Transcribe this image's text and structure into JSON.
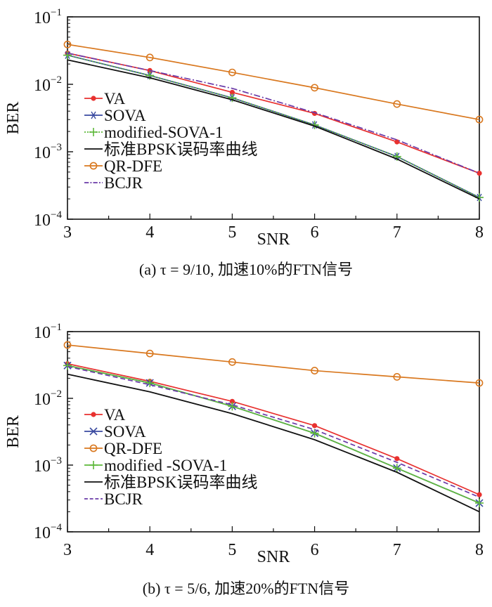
{
  "chart_data": [
    {
      "type": "line",
      "caption": "(a) τ = 9/10, 加速10%的FTN信号",
      "xlabel": "SNR",
      "ylabel": "BER",
      "yscale": "log",
      "xlim": [
        3,
        8
      ],
      "ylim": [
        0.0001,
        0.1
      ],
      "x": [
        3,
        4,
        5,
        6,
        7,
        8
      ],
      "xticks": [
        "3",
        "4",
        "5",
        "6",
        "7",
        "8"
      ],
      "yticks": [
        {
          "base": "10",
          "exp": "−1"
        },
        {
          "base": "10",
          "exp": "−2"
        },
        {
          "base": "10",
          "exp": "−3"
        },
        {
          "base": "10",
          "exp": "−4"
        }
      ],
      "legend_position": "center-left",
      "series": [
        {
          "name": "VA",
          "color": "#e8312f",
          "marker": "dot",
          "dash": "",
          "values": [
            0.029,
            0.016,
            0.0076,
            0.0037,
            0.0014,
            0.00048
          ]
        },
        {
          "name": "SOVA",
          "color": "#3a4aa0",
          "marker": "asterisk",
          "dash": "",
          "values": [
            0.027,
            0.0135,
            0.0063,
            0.0025,
            0.00085,
            0.00021
          ]
        },
        {
          "name": "modified-SOVA-1",
          "color": "#5db83a",
          "marker": "plus",
          "dash": "2,2",
          "values": [
            0.027,
            0.0135,
            0.0063,
            0.0025,
            0.00085,
            0.00021
          ]
        },
        {
          "name": "标准BPSK误码率曲线",
          "color": "#111111",
          "marker": "none",
          "dash": "",
          "values": [
            0.023,
            0.0125,
            0.0059,
            0.0024,
            0.00078,
            0.0002
          ]
        },
        {
          "name": "QR-DFE",
          "color": "#d9781f",
          "marker": "circle",
          "dash": "",
          "values": [
            0.039,
            0.025,
            0.015,
            0.0089,
            0.0051,
            0.003
          ]
        },
        {
          "name": "BCJR",
          "color": "#6a3aa8",
          "marker": "none",
          "dash": "9,3,2,3",
          "values": [
            0.029,
            0.016,
            0.0087,
            0.0038,
            0.0015,
            0.00048
          ]
        }
      ]
    },
    {
      "type": "line",
      "caption": "(b) τ = 5/6, 加速20%的FTN信号",
      "xlabel": "SNR",
      "ylabel": "BER",
      "yscale": "log",
      "xlim": [
        3,
        8
      ],
      "ylim": [
        0.0001,
        0.1
      ],
      "x": [
        3,
        4,
        5,
        6,
        7,
        8
      ],
      "xticks": [
        "3",
        "4",
        "5",
        "6",
        "7",
        "8"
      ],
      "yticks": [
        {
          "base": "10",
          "exp": "−1"
        },
        {
          "base": "10",
          "exp": "−2"
        },
        {
          "base": "10",
          "exp": "−3"
        },
        {
          "base": "10",
          "exp": "−4"
        }
      ],
      "legend_position": "center-left",
      "series": [
        {
          "name": "VA",
          "color": "#e8312f",
          "marker": "dot",
          "dash": "",
          "values": [
            0.033,
            0.018,
            0.009,
            0.0039,
            0.00125,
            0.00036
          ]
        },
        {
          "name": "SOVA",
          "color": "#3a4aa0",
          "marker": "x",
          "dash": "",
          "values": [
            0.031,
            0.017,
            0.0076,
            0.003,
            0.0009,
            0.00027
          ]
        },
        {
          "name": "QR-DFE",
          "color": "#d9781f",
          "marker": "circle",
          "dash": "",
          "values": [
            0.063,
            0.047,
            0.035,
            0.026,
            0.021,
            0.017
          ]
        },
        {
          "name": "modified -SOVA-1",
          "color": "#5db83a",
          "marker": "plus",
          "dash": "",
          "values": [
            0.031,
            0.017,
            0.0076,
            0.003,
            0.0009,
            0.00027
          ]
        },
        {
          "name": "标准BPSK误码率曲线",
          "color": "#111111",
          "marker": "none",
          "dash": "",
          "values": [
            0.023,
            0.0125,
            0.0059,
            0.0024,
            0.00078,
            0.0002
          ]
        },
        {
          "name": "BCJR",
          "color": "#6a3aa8",
          "marker": "none",
          "dash": "7,4",
          "values": [
            0.03,
            0.016,
            0.008,
            0.0034,
            0.0011,
            0.00033
          ]
        }
      ]
    }
  ]
}
